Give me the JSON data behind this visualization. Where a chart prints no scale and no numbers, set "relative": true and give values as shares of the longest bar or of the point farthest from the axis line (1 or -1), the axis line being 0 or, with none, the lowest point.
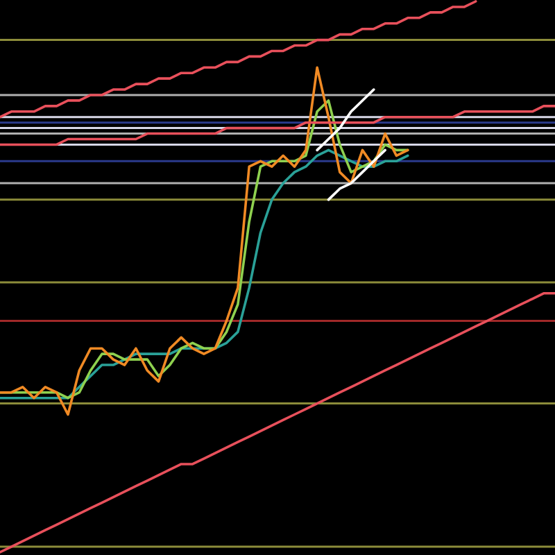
{
  "chart_data": {
    "type": "line",
    "relative": true,
    "grid": false,
    "legend": false,
    "categories": [
      null,
      null,
      null,
      null,
      null,
      null,
      null,
      null,
      null,
      null,
      null,
      null,
      null,
      null,
      null,
      null,
      null,
      null,
      null,
      null,
      null,
      null,
      null,
      null,
      null,
      null,
      null,
      null,
      null,
      null,
      null,
      null,
      null,
      null,
      null,
      null,
      null,
      null,
      null,
      null,
      null,
      null,
      null,
      null,
      null,
      null,
      null,
      null,
      null,
      null
    ],
    "series": [
      {
        "color": "#2aa198",
        "values": [
          0.28,
          0.28,
          0.28,
          0.28,
          0.28,
          0.28,
          0.28,
          0.3,
          0.32,
          0.34,
          0.34,
          0.35,
          0.36,
          0.36,
          0.36,
          0.36,
          0.37,
          0.37,
          0.37,
          0.37,
          0.38,
          0.4,
          0.48,
          0.58,
          0.64,
          0.67,
          0.69,
          0.7,
          0.72,
          0.73,
          0.72,
          0.71,
          0.7,
          0.7,
          0.71,
          0.71,
          0.72,
          null,
          null,
          null,
          null,
          null,
          null,
          null,
          null,
          null,
          null,
          null,
          null,
          null
        ]
      },
      {
        "color": "#8fd14f",
        "values": [
          0.29,
          0.29,
          0.29,
          0.29,
          0.29,
          0.29,
          0.28,
          0.29,
          0.33,
          0.36,
          0.36,
          0.35,
          0.35,
          0.35,
          0.32,
          0.34,
          0.37,
          0.38,
          0.37,
          0.37,
          0.4,
          0.45,
          0.6,
          0.7,
          0.71,
          0.71,
          0.71,
          0.72,
          0.8,
          0.82,
          0.74,
          0.69,
          0.7,
          0.71,
          0.74,
          0.73,
          0.73,
          null,
          null,
          null,
          null,
          null,
          null,
          null,
          null,
          null,
          null,
          null,
          null,
          null
        ]
      },
      {
        "color": "#f08a24",
        "values": [
          0.29,
          0.29,
          0.3,
          0.28,
          0.3,
          0.29,
          0.25,
          0.33,
          0.37,
          0.37,
          0.35,
          0.34,
          0.37,
          0.33,
          0.31,
          0.37,
          0.39,
          0.37,
          0.36,
          0.37,
          0.42,
          0.48,
          0.7,
          0.71,
          0.7,
          0.72,
          0.7,
          0.73,
          0.88,
          0.79,
          0.69,
          0.67,
          0.73,
          0.7,
          0.76,
          0.72,
          0.73,
          null,
          null,
          null,
          null,
          null,
          null,
          null,
          null,
          null,
          null,
          null,
          null,
          null
        ]
      },
      {
        "color": "#e8505b",
        "values": [
          0.79,
          0.8,
          0.8,
          0.8,
          0.81,
          0.81,
          0.82,
          0.82,
          0.83,
          0.83,
          0.84,
          0.84,
          0.85,
          0.85,
          0.86,
          0.86,
          0.87,
          0.87,
          0.88,
          0.88,
          0.89,
          0.89,
          0.9,
          0.9,
          0.91,
          0.91,
          0.92,
          0.92,
          0.93,
          0.93,
          0.94,
          0.94,
          0.95,
          0.95,
          0.96,
          0.96,
          0.97,
          0.97,
          0.98,
          0.98,
          0.99,
          0.99,
          1.0,
          null,
          null,
          null,
          null,
          null,
          null,
          null
        ]
      },
      {
        "color": "#e8505b",
        "values": [
          0.74,
          0.74,
          0.74,
          0.74,
          0.74,
          0.74,
          0.75,
          0.75,
          0.75,
          0.75,
          0.75,
          0.75,
          0.75,
          0.76,
          0.76,
          0.76,
          0.76,
          0.76,
          0.76,
          0.76,
          0.77,
          0.77,
          0.77,
          0.77,
          0.77,
          0.77,
          0.77,
          0.78,
          0.78,
          0.78,
          0.78,
          0.78,
          0.78,
          0.78,
          0.79,
          0.79,
          0.79,
          0.79,
          0.79,
          0.79,
          0.79,
          0.8,
          0.8,
          0.8,
          0.8,
          0.8,
          0.8,
          0.8,
          0.81,
          0.81
        ]
      },
      {
        "color": "#e8505b",
        "values": [
          0,
          0.01,
          0.02,
          0.03,
          0.04,
          0.05,
          0.06,
          0.07,
          0.08,
          0.09,
          0.1,
          0.11,
          0.12,
          0.13,
          0.14,
          0.15,
          0.16,
          0.16,
          0.17,
          0.18,
          0.19,
          0.2,
          0.21,
          0.22,
          0.23,
          0.24,
          0.25,
          0.26,
          0.27,
          0.28,
          0.29,
          0.3,
          0.31,
          0.32,
          0.33,
          0.34,
          0.35,
          0.36,
          0.37,
          0.38,
          0.39,
          0.4,
          0.41,
          0.42,
          0.43,
          0.44,
          0.45,
          0.46,
          0.47,
          0.47
        ]
      },
      {
        "color": "#ffffff",
        "values": [
          null,
          null,
          null,
          null,
          null,
          null,
          null,
          null,
          null,
          null,
          null,
          null,
          null,
          null,
          null,
          null,
          null,
          null,
          null,
          null,
          null,
          null,
          null,
          null,
          null,
          null,
          null,
          null,
          0.73,
          0.75,
          0.77,
          0.8,
          0.82,
          0.84,
          null,
          null,
          null,
          null,
          null,
          null,
          null,
          null,
          null,
          null,
          null,
          null,
          null,
          null,
          null,
          null
        ]
      },
      {
        "color": "#ffffff",
        "values": [
          null,
          null,
          null,
          null,
          null,
          null,
          null,
          null,
          null,
          null,
          null,
          null,
          null,
          null,
          null,
          null,
          null,
          null,
          null,
          null,
          null,
          null,
          null,
          null,
          null,
          null,
          null,
          null,
          null,
          0.64,
          0.66,
          0.67,
          0.69,
          0.71,
          0.73,
          null,
          null,
          null,
          null,
          null,
          null,
          null,
          null,
          null,
          null,
          null,
          null,
          null,
          null,
          null
        ]
      }
    ],
    "ref_lines": [
      {
        "axis": "y",
        "value": 0.93,
        "color": "#8c8c3a"
      },
      {
        "axis": "y",
        "value": 0.83,
        "color": "#b0b0b0"
      },
      {
        "axis": "y",
        "value": 0.79,
        "color": "#d8d8e8"
      },
      {
        "axis": "y",
        "value": 0.78,
        "color": "#2a3a8c"
      },
      {
        "axis": "y",
        "value": 0.77,
        "color": "#d8d8e8"
      },
      {
        "axis": "y",
        "value": 0.76,
        "color": "#b0b0b0"
      },
      {
        "axis": "y",
        "value": 0.74,
        "color": "#d8d8e8"
      },
      {
        "axis": "y",
        "value": 0.71,
        "color": "#2a3a8c"
      },
      {
        "axis": "y",
        "value": 0.67,
        "color": "#b0b0b0"
      },
      {
        "axis": "y",
        "value": 0.64,
        "color": "#8c8c3a"
      },
      {
        "axis": "y",
        "value": 0.49,
        "color": "#8c8c3a"
      },
      {
        "axis": "y",
        "value": 0.42,
        "color": "#a02828"
      },
      {
        "axis": "y",
        "value": 0.27,
        "color": "#8c8c3a"
      },
      {
        "axis": "y",
        "value": 0.01,
        "color": "#8c8c3a"
      }
    ]
  }
}
